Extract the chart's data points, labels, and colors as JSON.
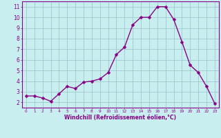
{
  "x": [
    0,
    1,
    2,
    3,
    4,
    5,
    6,
    7,
    8,
    9,
    10,
    11,
    12,
    13,
    14,
    15,
    16,
    17,
    18,
    19,
    20,
    21,
    22,
    23
  ],
  "y": [
    2.6,
    2.6,
    2.4,
    2.1,
    2.8,
    3.5,
    3.3,
    3.9,
    4.0,
    4.2,
    4.8,
    6.5,
    7.2,
    9.3,
    10.0,
    10.0,
    11.0,
    11.0,
    9.8,
    7.7,
    5.5,
    4.8,
    3.5,
    1.9
  ],
  "line_color": "#880088",
  "marker_color": "#880088",
  "bg_color": "#c8eef0",
  "grid_color": "#a0c8d0",
  "axis_label_color": "#880088",
  "tick_color": "#880088",
  "xlabel": "Windchill (Refroidissement éolien,°C)",
  "ylim": [
    1.5,
    11.5
  ],
  "xlim": [
    -0.5,
    23.5
  ],
  "yticks": [
    2,
    3,
    4,
    5,
    6,
    7,
    8,
    9,
    10,
    11
  ],
  "xticks": [
    0,
    1,
    2,
    3,
    4,
    5,
    6,
    7,
    8,
    9,
    10,
    11,
    12,
    13,
    14,
    15,
    16,
    17,
    18,
    19,
    20,
    21,
    22,
    23
  ],
  "marker_size": 2.5,
  "line_width": 1.0
}
